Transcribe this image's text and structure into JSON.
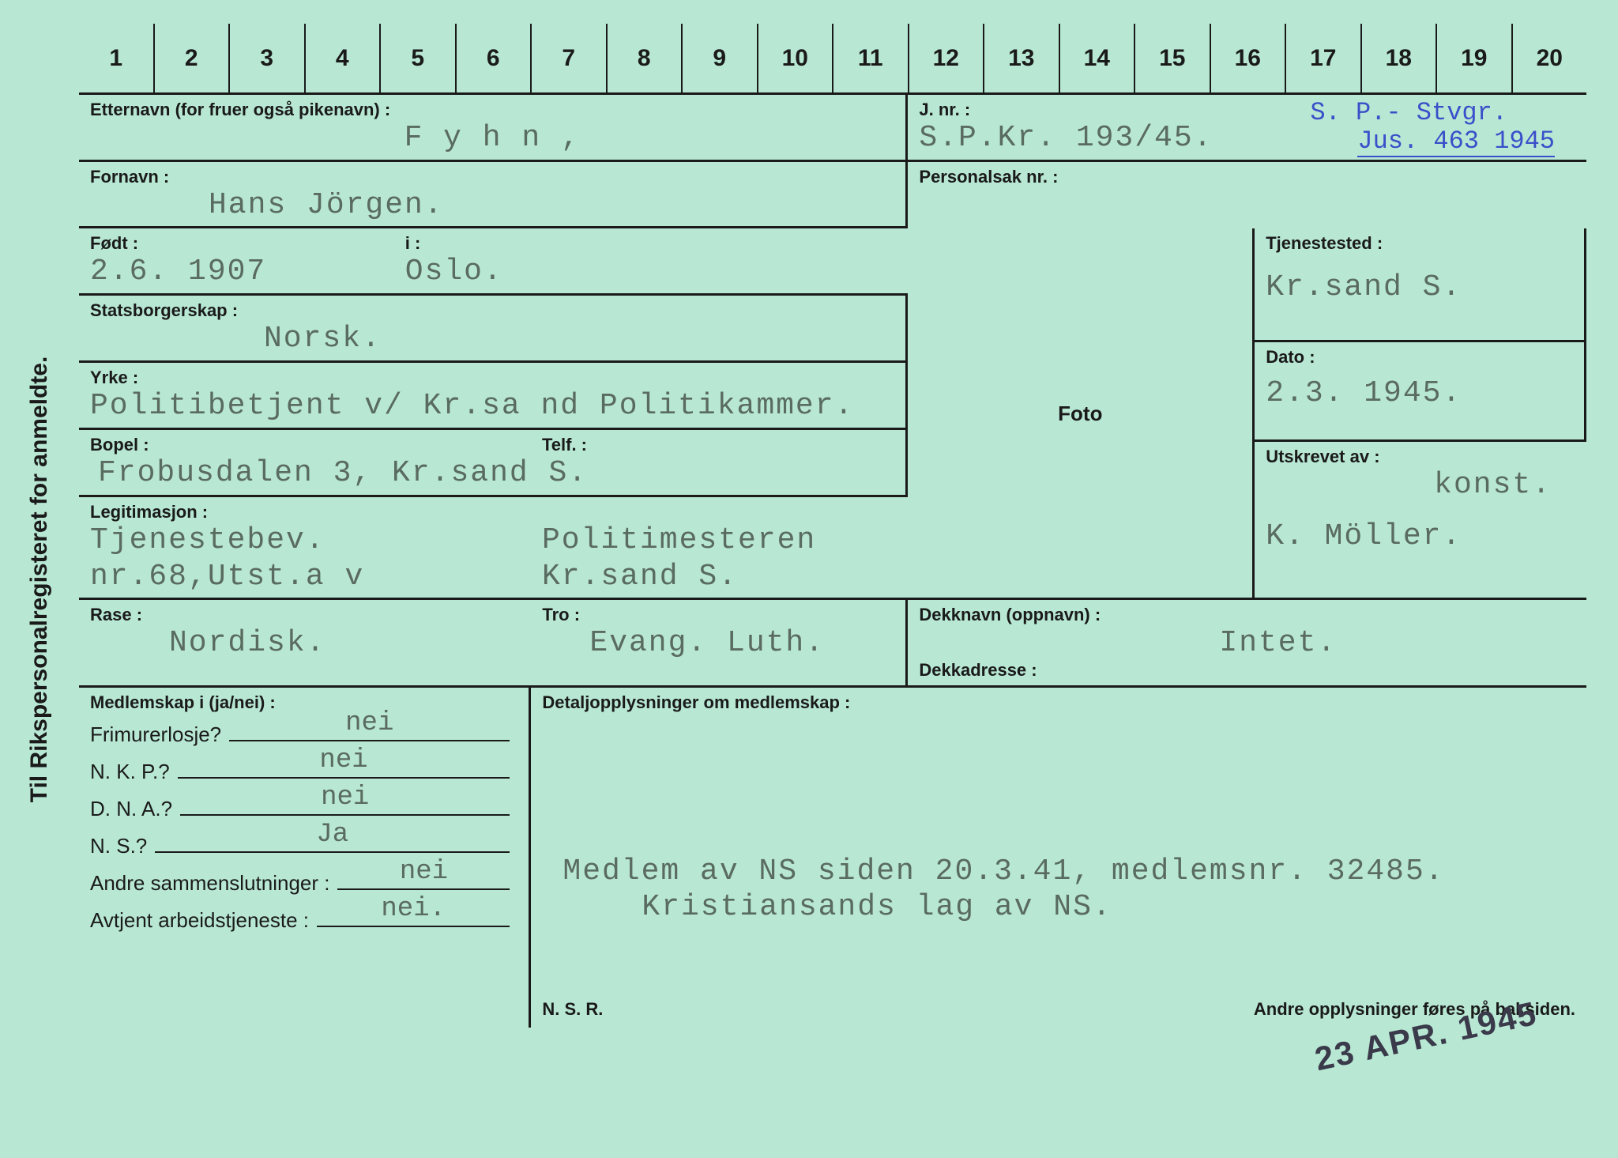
{
  "sideTitle": "Til Rikspersonalregisteret for anmeldte.",
  "ruler": [
    "1",
    "2",
    "3",
    "4",
    "5",
    "6",
    "7",
    "8",
    "9",
    "10",
    "11",
    "12",
    "13",
    "14",
    "15",
    "16",
    "17",
    "18",
    "19",
    "20"
  ],
  "labels": {
    "etternavn": "Etternavn (for fruer også pikenavn) :",
    "fornavn": "Fornavn :",
    "fodt": "Født :",
    "i": "i :",
    "stats": "Statsborgerskap :",
    "yrke": "Yrke :",
    "bopel": "Bopel :",
    "telf": "Telf. :",
    "legit": "Legitimasjon :",
    "rase": "Rase :",
    "tro": "Tro :",
    "jnr": "J. nr. :",
    "pers": "Personalsak nr. :",
    "foto": "Foto",
    "dekk": "Dekknavn (oppnavn) :",
    "dekka": "Dekkadresse :",
    "tjen": "Tjenestested :",
    "dato": "Dato :",
    "utsk": "Utskrevet av :",
    "medl": "Medlemskap i (ja/nei) :",
    "detalj": "Detaljopplysninger om medlemskap :",
    "nsr": "N. S. R.",
    "andre": "Andre opplysninger føres på baksiden."
  },
  "values": {
    "etternavn": "F y h n ,",
    "fornavn": "Hans Jörgen.",
    "fodt": "2.6. 1907",
    "i": "Oslo.",
    "stats": "Norsk.",
    "yrke": "Politibetjent v/ Kr.sa nd Politikammer.",
    "bopel": "Frobusdalen 3, Kr.sand S.",
    "legit1": "Tjenestebev. nr.68,Utst.a v",
    "legit2": "Politimesteren Kr.sand S.",
    "rase": "Nordisk.",
    "tro": "Evang. Luth.",
    "jnr": "S.P.Kr. 193/45.",
    "dekk": "Intet.",
    "tjen": "Kr.sand S.",
    "dato": "2.3. 1945.",
    "utsk1": "konst.",
    "utsk2": "K. Möller."
  },
  "stamps": {
    "blue1": "S. P.- Stvgr.",
    "blue2": "Jus. 463 1945",
    "date": "23 APR. 1945"
  },
  "membership": {
    "rows": [
      {
        "label": "Frimurerlosje?",
        "value": "nei"
      },
      {
        "label": "N. K. P.?",
        "value": "nei"
      },
      {
        "label": "D. N. A.?",
        "value": "nei"
      },
      {
        "label": "N. S.?",
        "value": "Ja"
      },
      {
        "label": "Andre sammenslutninger :",
        "value": "nei"
      },
      {
        "label": "Avtjent arbeidstjeneste :",
        "value": "nei."
      }
    ],
    "detail1": "Medlem av NS siden 20.3.41, medlemsnr. 32485.",
    "detail2": "Kristiansands lag av NS."
  },
  "colors": {
    "cardBg": "#b8e8d4",
    "line": "#1a1a1a",
    "typed": "#5a6b5f",
    "blue": "#3a4fc9"
  }
}
